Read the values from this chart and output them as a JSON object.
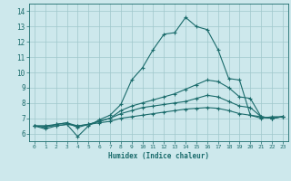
{
  "xlabel": "Humidex (Indice chaleur)",
  "xlim": [
    -0.5,
    23.5
  ],
  "ylim": [
    5.5,
    14.5
  ],
  "yticks": [
    6,
    7,
    8,
    9,
    10,
    11,
    12,
    13,
    14
  ],
  "xticks": [
    0,
    1,
    2,
    3,
    4,
    5,
    6,
    7,
    8,
    9,
    10,
    11,
    12,
    13,
    14,
    15,
    16,
    17,
    18,
    19,
    20,
    21,
    22,
    23
  ],
  "bg_color": "#cde8ec",
  "grid_color": "#a0c8cc",
  "line_color": "#1a6b6b",
  "series": [
    [
      6.5,
      6.3,
      6.5,
      6.6,
      5.8,
      6.5,
      6.9,
      7.2,
      7.9,
      9.5,
      10.3,
      11.5,
      12.5,
      12.6,
      13.6,
      13.0,
      12.8,
      11.5,
      9.6,
      9.5,
      7.2,
      7.0,
      7.1,
      7.1
    ],
    [
      6.5,
      6.4,
      6.6,
      6.7,
      6.4,
      6.6,
      6.8,
      7.0,
      7.5,
      7.8,
      8.0,
      8.2,
      8.4,
      8.6,
      8.9,
      9.2,
      9.5,
      9.4,
      9.0,
      8.4,
      8.3,
      7.1,
      7.0,
      7.1
    ],
    [
      6.5,
      6.5,
      6.6,
      6.7,
      6.5,
      6.6,
      6.8,
      7.0,
      7.3,
      7.5,
      7.7,
      7.8,
      7.9,
      8.0,
      8.1,
      8.3,
      8.5,
      8.4,
      8.1,
      7.8,
      7.7,
      7.1,
      7.0,
      7.1
    ],
    [
      6.5,
      6.5,
      6.5,
      6.6,
      6.5,
      6.6,
      6.7,
      6.8,
      7.0,
      7.1,
      7.2,
      7.3,
      7.4,
      7.5,
      7.6,
      7.65,
      7.7,
      7.65,
      7.5,
      7.3,
      7.2,
      7.1,
      7.0,
      7.1
    ]
  ]
}
